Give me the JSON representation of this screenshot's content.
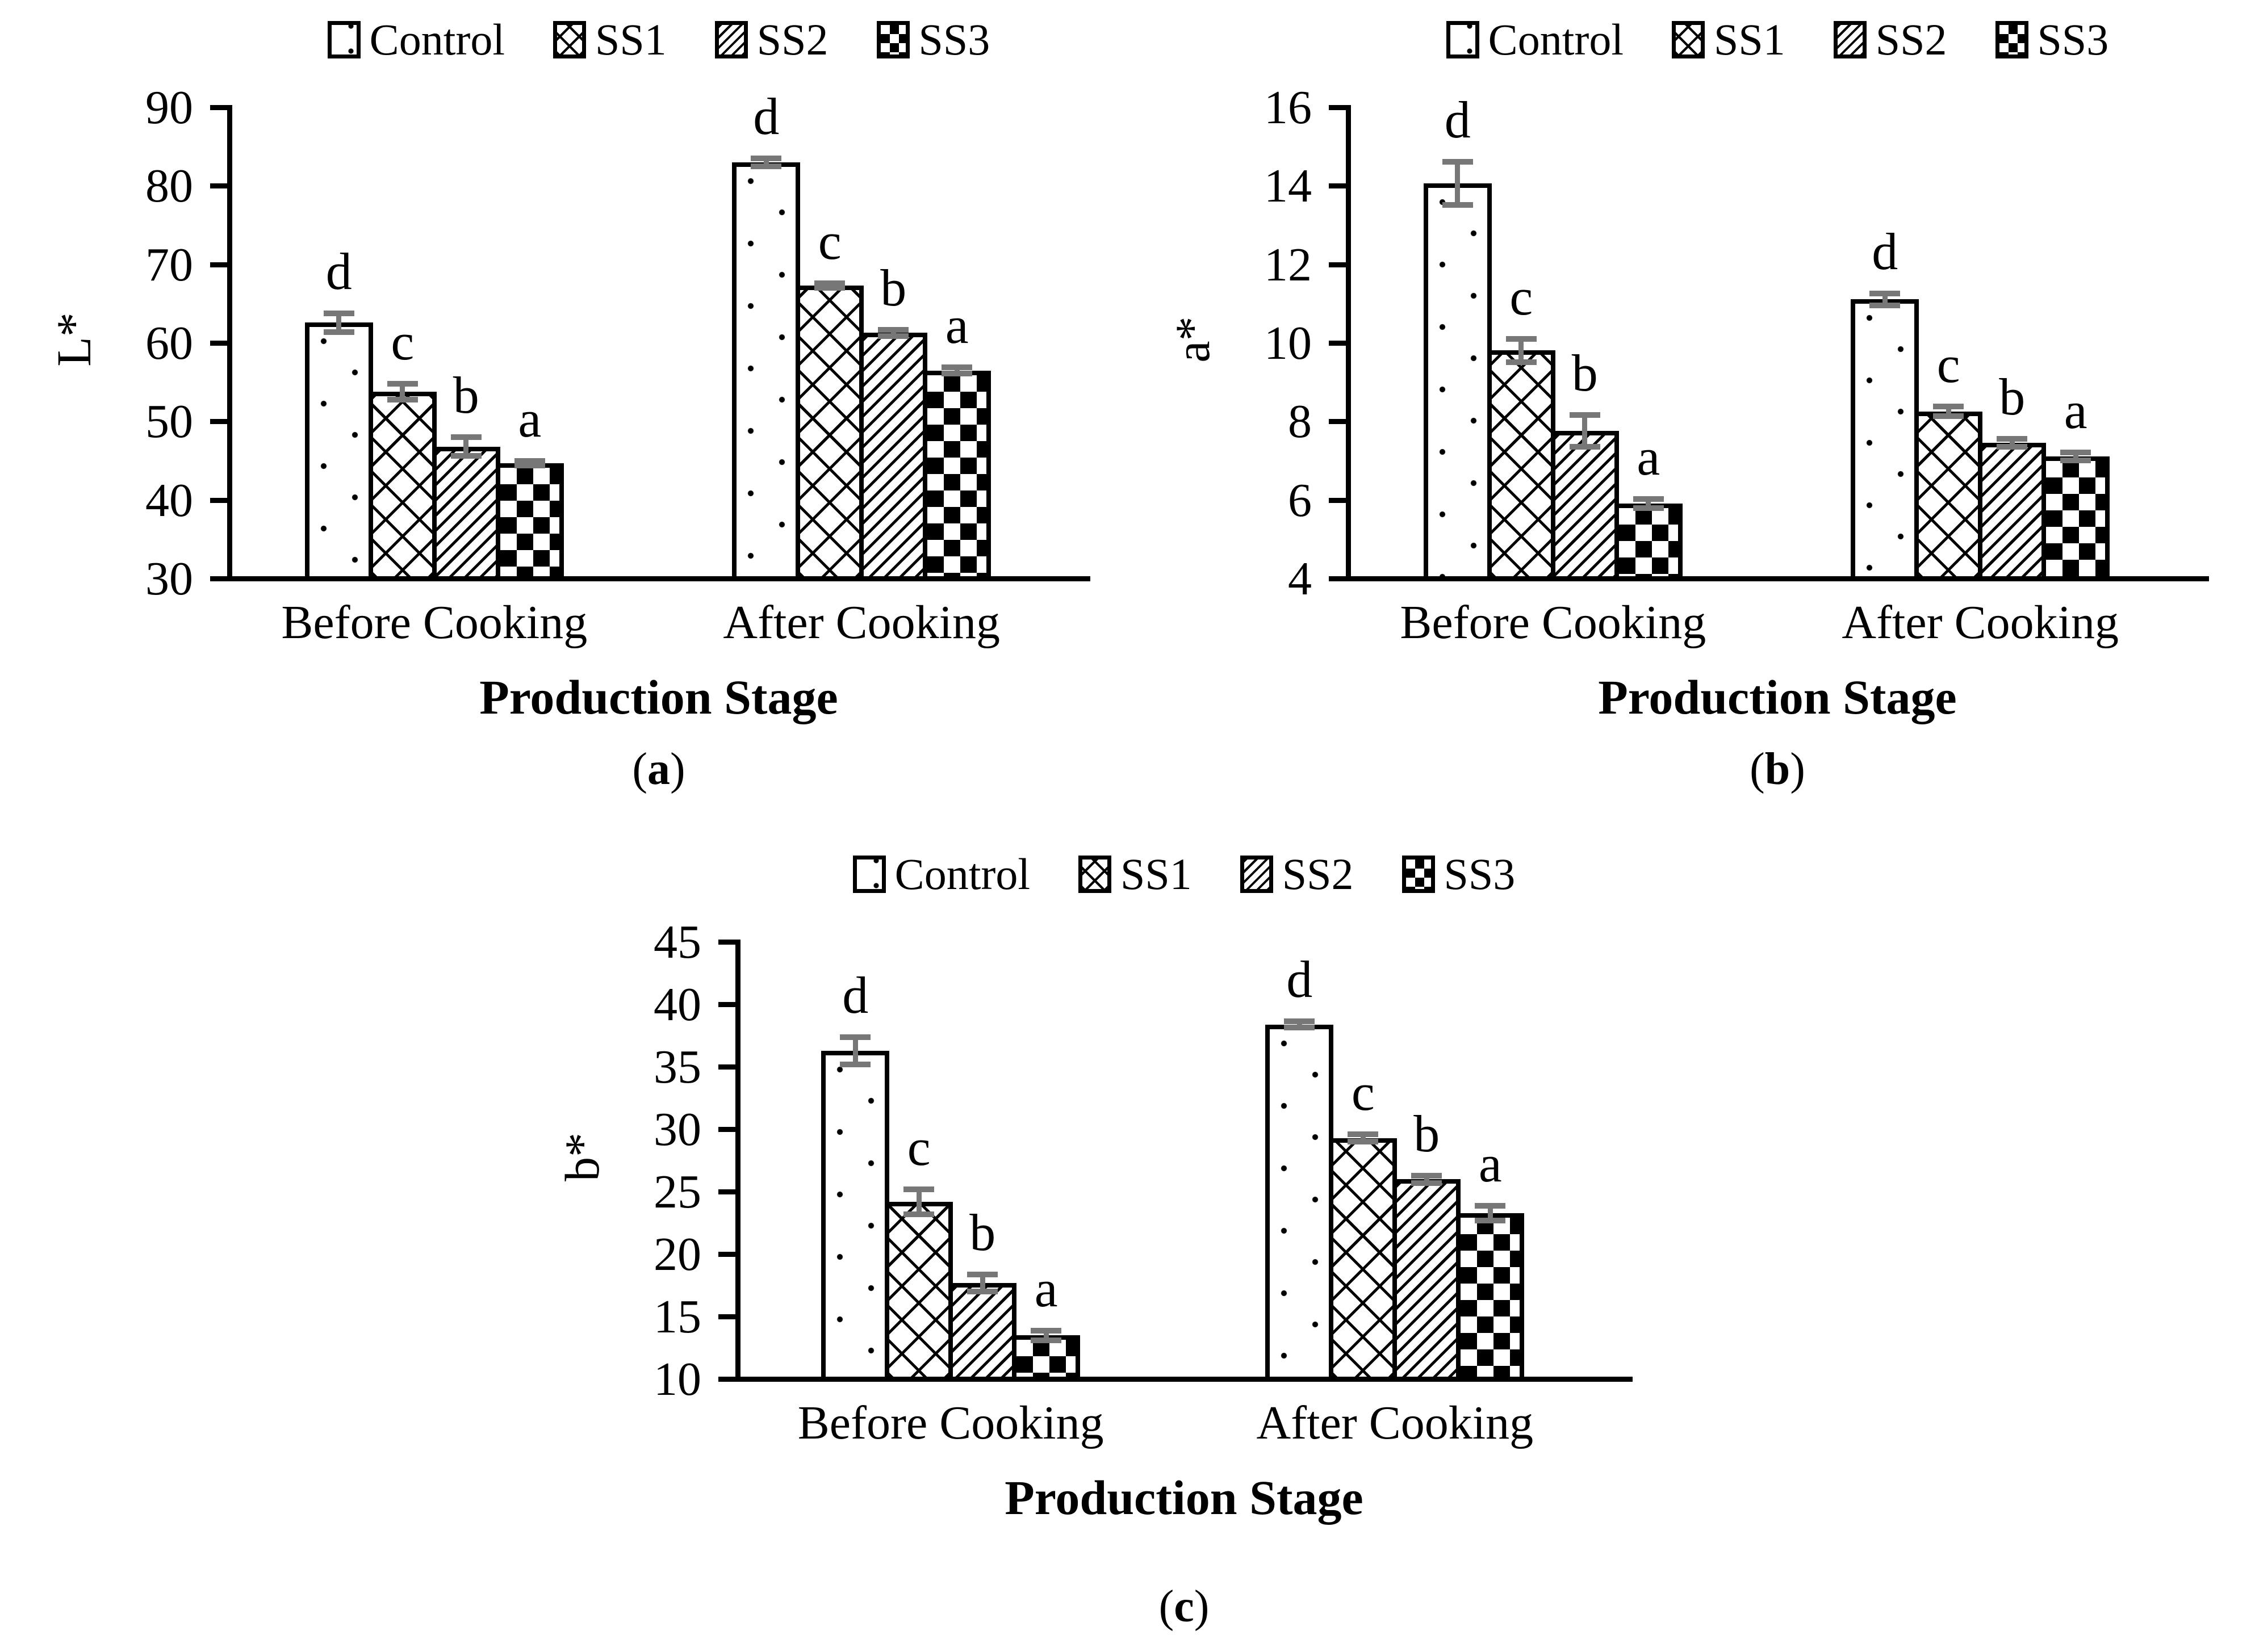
{
  "figure": {
    "background": "#ffffff",
    "text_color": "#000000",
    "bar_fill": "#ffffff",
    "bar_border": "#000000",
    "error_bar_color": "#777777"
  },
  "chart_data": [
    {
      "type": "bar",
      "title": "",
      "ylabel": "L*",
      "xlabel": "Production Stage",
      "caption": {
        "pre": "(",
        "letter": "a",
        "post": ")"
      },
      "categories": [
        "Before Cooking",
        "After Cooking"
      ],
      "ylim": [
        30,
        90
      ],
      "yticks": [
        30,
        40,
        50,
        60,
        70,
        80,
        90
      ],
      "grid": false,
      "legend_position": "top",
      "series": [
        {
          "name": "Control",
          "pattern": "dots",
          "values": [
            62.3,
            82.7
          ],
          "errors": [
            1.2,
            0.5
          ],
          "sig_letters": [
            "d",
            "d"
          ]
        },
        {
          "name": "SS1",
          "pattern": "crosshatch",
          "values": [
            53.5,
            67.0
          ],
          "errors": [
            1.0,
            0.3
          ],
          "sig_letters": [
            "c",
            "c"
          ]
        },
        {
          "name": "SS2",
          "pattern": "diagonal-stripes",
          "values": [
            46.5,
            61.0
          ],
          "errors": [
            1.2,
            0.4
          ],
          "sig_letters": [
            "b",
            "b"
          ]
        },
        {
          "name": "SS3",
          "pattern": "diamond-checker",
          "values": [
            44.4,
            56.2
          ],
          "errors": [
            0.3,
            0.4
          ],
          "sig_letters": [
            "a",
            "a"
          ]
        }
      ]
    },
    {
      "type": "bar",
      "title": "",
      "ylabel": "a*",
      "xlabel": "Production Stage",
      "caption": {
        "pre": "(",
        "letter": "b",
        "post": ")"
      },
      "categories": [
        "Before Cooking",
        "After Cooking"
      ],
      "ylim": [
        4,
        16
      ],
      "yticks": [
        4,
        6,
        8,
        10,
        12,
        14,
        16
      ],
      "grid": false,
      "legend_position": "top",
      "series": [
        {
          "name": "Control",
          "pattern": "dots",
          "values": [
            14.0,
            11.05
          ],
          "errors": [
            0.55,
            0.15
          ],
          "sig_letters": [
            "d",
            "d"
          ]
        },
        {
          "name": "SS1",
          "pattern": "crosshatch",
          "values": [
            9.75,
            8.2
          ],
          "errors": [
            0.3,
            0.12
          ],
          "sig_letters": [
            "c",
            "c"
          ]
        },
        {
          "name": "SS2",
          "pattern": "diagonal-stripes",
          "values": [
            7.7,
            7.4
          ],
          "errors": [
            0.4,
            0.1
          ],
          "sig_letters": [
            "b",
            "b"
          ]
        },
        {
          "name": "SS3",
          "pattern": "diamond-checker",
          "values": [
            5.85,
            7.05
          ],
          "errors": [
            0.12,
            0.1
          ],
          "sig_letters": [
            "a",
            "a"
          ]
        }
      ]
    },
    {
      "type": "bar",
      "title": "",
      "ylabel": "b*",
      "xlabel": "Production Stage",
      "caption": {
        "pre": "(",
        "letter": "c",
        "post": ")"
      },
      "categories": [
        "Before Cooking",
        "After Cooking"
      ],
      "ylim": [
        10,
        45
      ],
      "yticks": [
        10,
        15,
        20,
        25,
        30,
        35,
        40,
        45
      ],
      "grid": false,
      "legend_position": "top",
      "series": [
        {
          "name": "Control",
          "pattern": "dots",
          "values": [
            36.1,
            38.2
          ],
          "errors": [
            1.1,
            0.25
          ],
          "sig_letters": [
            "d",
            "d"
          ]
        },
        {
          "name": "SS1",
          "pattern": "crosshatch",
          "values": [
            24.0,
            29.1
          ],
          "errors": [
            1.0,
            0.3
          ],
          "sig_letters": [
            "c",
            "c"
          ]
        },
        {
          "name": "SS2",
          "pattern": "diagonal-stripes",
          "values": [
            17.5,
            25.8
          ],
          "errors": [
            0.7,
            0.3
          ],
          "sig_letters": [
            "b",
            "b"
          ]
        },
        {
          "name": "SS3",
          "pattern": "diamond-checker",
          "values": [
            13.3,
            23.1
          ],
          "errors": [
            0.4,
            0.6
          ],
          "sig_letters": [
            "a",
            "a"
          ]
        }
      ]
    }
  ]
}
